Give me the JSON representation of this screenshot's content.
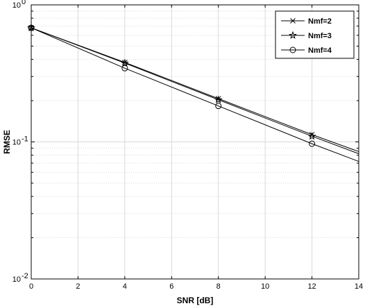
{
  "chart_data": {
    "type": "line",
    "title": "",
    "xlabel": "SNR [dB]",
    "ylabel": "RMSE",
    "xlim": [
      0,
      14
    ],
    "ylim": [
      0.01,
      1
    ],
    "yscale": "log",
    "grid": true,
    "legend_position": "top-right",
    "x_ticks": [
      0,
      2,
      4,
      6,
      8,
      10,
      12,
      14
    ],
    "x_tick_labels": [
      "0",
      "2",
      "4",
      "6",
      "8",
      "10",
      "12",
      "14"
    ],
    "y_ticks": [
      {
        "value": 0.01,
        "base": "10",
        "exp": "-2"
      },
      {
        "value": 0.1,
        "base": "10",
        "exp": "-1"
      },
      {
        "value": 1,
        "base": "10",
        "exp": "0"
      }
    ],
    "line_color": "#000000",
    "grid_color": "#d9d9d9",
    "series": [
      {
        "name": "Nmf=2",
        "marker": "x",
        "x": [
          0,
          4,
          8,
          12,
          14
        ],
        "y": [
          0.68,
          0.38,
          0.207,
          0.113,
          0.085
        ],
        "marker_indices": [
          0,
          1,
          2,
          3
        ]
      },
      {
        "name": "Nmf=3",
        "marker": "star",
        "x": [
          0,
          4,
          8,
          12,
          14
        ],
        "y": [
          0.68,
          0.376,
          0.203,
          0.11,
          0.082
        ],
        "marker_indices": [
          0,
          1,
          2,
          3
        ]
      },
      {
        "name": "Nmf=4",
        "marker": "circle",
        "x": [
          0,
          4,
          8,
          12,
          14
        ],
        "y": [
          0.68,
          0.345,
          0.183,
          0.097,
          0.072
        ],
        "marker_indices": [
          0,
          1,
          2,
          3
        ]
      }
    ]
  }
}
